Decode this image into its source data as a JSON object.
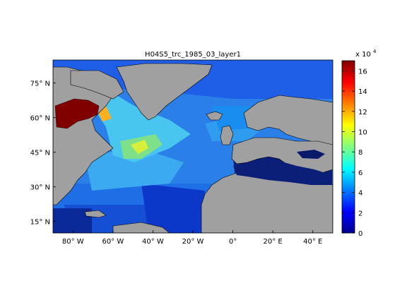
{
  "title": "H04S5_trc_1985_03_layer1",
  "map": {
    "lon_ticks": [
      {
        "lon": -80,
        "label": "80° W"
      },
      {
        "lon": -60,
        "label": "60° W"
      },
      {
        "lon": -40,
        "label": "40° W"
      },
      {
        "lon": -20,
        "label": "20° W"
      },
      {
        "lon": 0,
        "label": "0°"
      },
      {
        "lon": 20,
        "label": "20° E"
      },
      {
        "lon": 40,
        "label": "40° E"
      }
    ],
    "lat_ticks": [
      {
        "lat": 15,
        "label": "15° N"
      },
      {
        "lat": 30,
        "label": "30° N"
      },
      {
        "lat": 45,
        "label": "45° N"
      },
      {
        "lat": 60,
        "label": "60° N"
      },
      {
        "lat": 75,
        "label": "75° N"
      }
    ],
    "lon_range": [
      -90,
      50
    ],
    "lat_range": [
      10,
      85
    ],
    "land_color": "#a0a0a0",
    "colormap": "jet"
  },
  "colorbar": {
    "min": 0,
    "max": 170000,
    "ticks": [
      0,
      2,
      4,
      6,
      8,
      10,
      12,
      14,
      16
    ],
    "multiplier_base": "x 10",
    "multiplier_exp": "4"
  }
}
